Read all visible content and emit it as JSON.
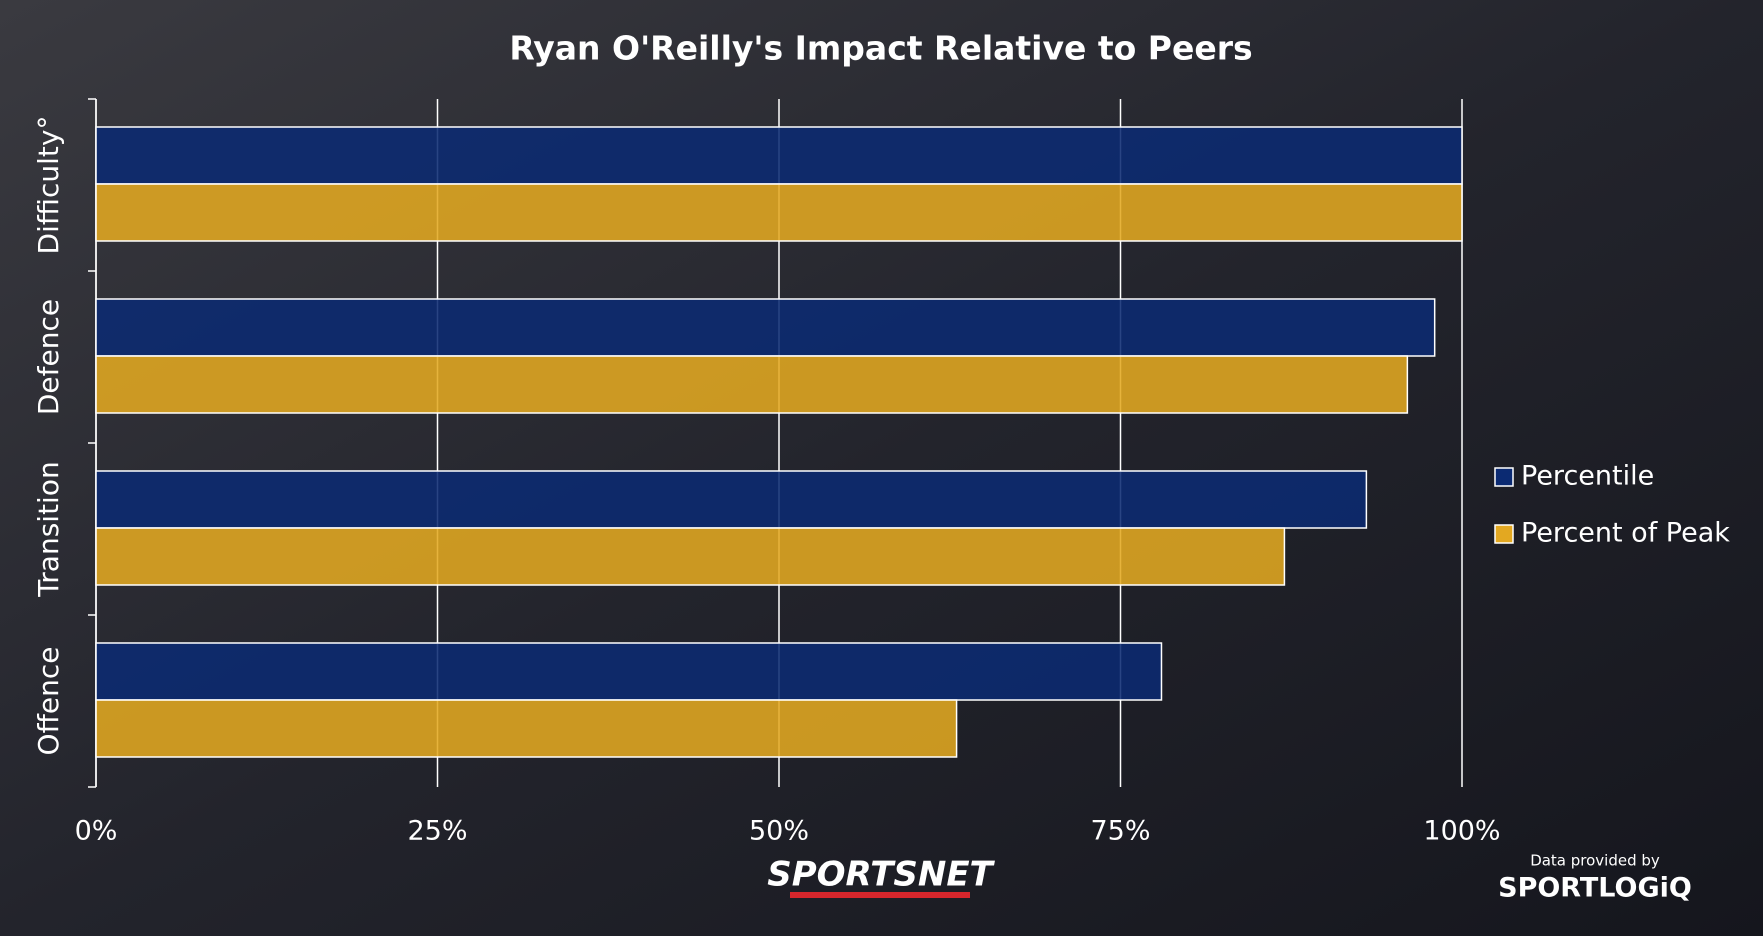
{
  "chart_data": {
    "type": "bar",
    "orientation": "horizontal",
    "title": "Ryan O'Reilly's Impact Relative to Peers",
    "categories": [
      "Difficulty°",
      "Defence",
      "Transition",
      "Offence"
    ],
    "series": [
      {
        "name": "Percentile",
        "color": "#0b2a72",
        "values": [
          100,
          98,
          93,
          78
        ]
      },
      {
        "name": "Percent of Peak",
        "color": "#e3a821",
        "values": [
          100,
          96,
          87,
          63
        ]
      }
    ],
    "xlim": [
      0,
      100
    ],
    "xticks": [
      {
        "value": 0,
        "label": "0%"
      },
      {
        "value": 25,
        "label": "25%"
      },
      {
        "value": 50,
        "label": "50%"
      },
      {
        "value": 75,
        "label": "75%"
      },
      {
        "value": 100,
        "label": "100%"
      }
    ],
    "grid": true,
    "legend": "right"
  },
  "branding": {
    "network": "SPORTSNET",
    "credit": "Data provided by",
    "provider": "SPORTLOGiQ"
  }
}
